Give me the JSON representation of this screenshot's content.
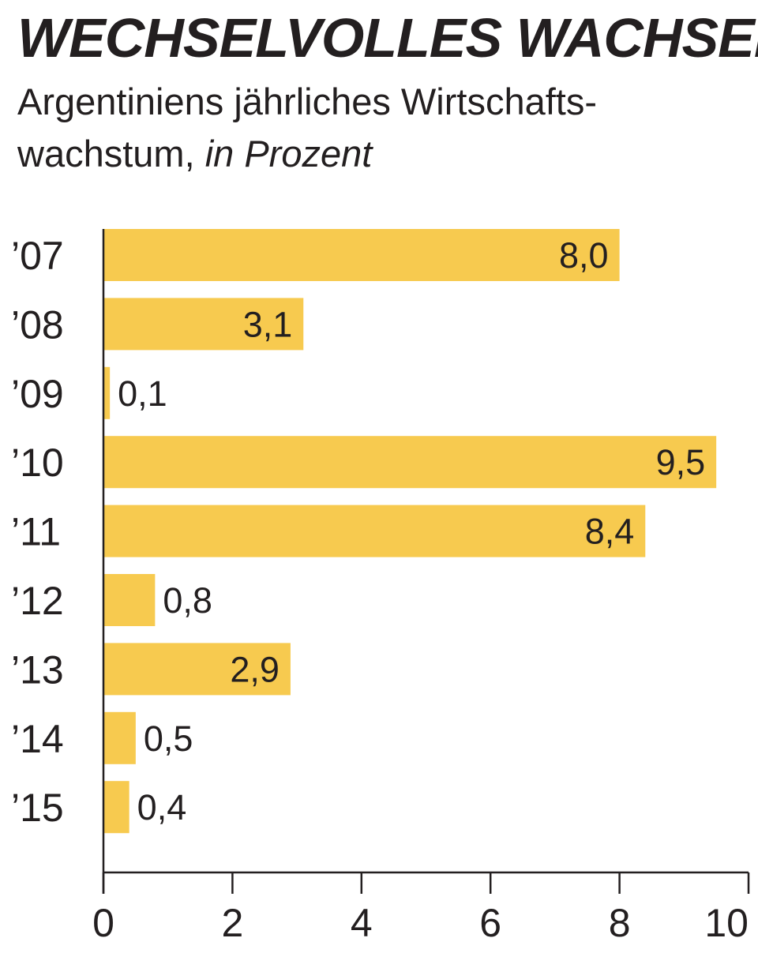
{
  "title": "WECHSELVOLLES WACHSEN",
  "subtitle_line1": "Argentiniens jährliches Wirtschafts-",
  "subtitle_line2_prefix": "wachstum, ",
  "subtitle_unit": "in Prozent",
  "colors": {
    "bar": "#f7ca4f",
    "text": "#231f20",
    "axis": "#231f20"
  },
  "chart_data": {
    "type": "bar",
    "orientation": "horizontal",
    "categories": [
      "’07",
      "’08",
      "’09",
      "’10",
      "’11",
      "’12",
      "’13",
      "’14",
      "’15"
    ],
    "values": [
      8.0,
      3.1,
      0.1,
      9.5,
      8.4,
      0.8,
      2.9,
      0.5,
      0.4
    ],
    "value_labels": [
      "8,0",
      "3,1",
      "0,1",
      "9,5",
      "8,4",
      "0,8",
      "2,9",
      "0,5",
      "0,4"
    ],
    "x_ticks": [
      "0",
      "2",
      "4",
      "6",
      "8",
      "10"
    ],
    "xlim": [
      0,
      10
    ],
    "grid": false,
    "legend": "none"
  }
}
